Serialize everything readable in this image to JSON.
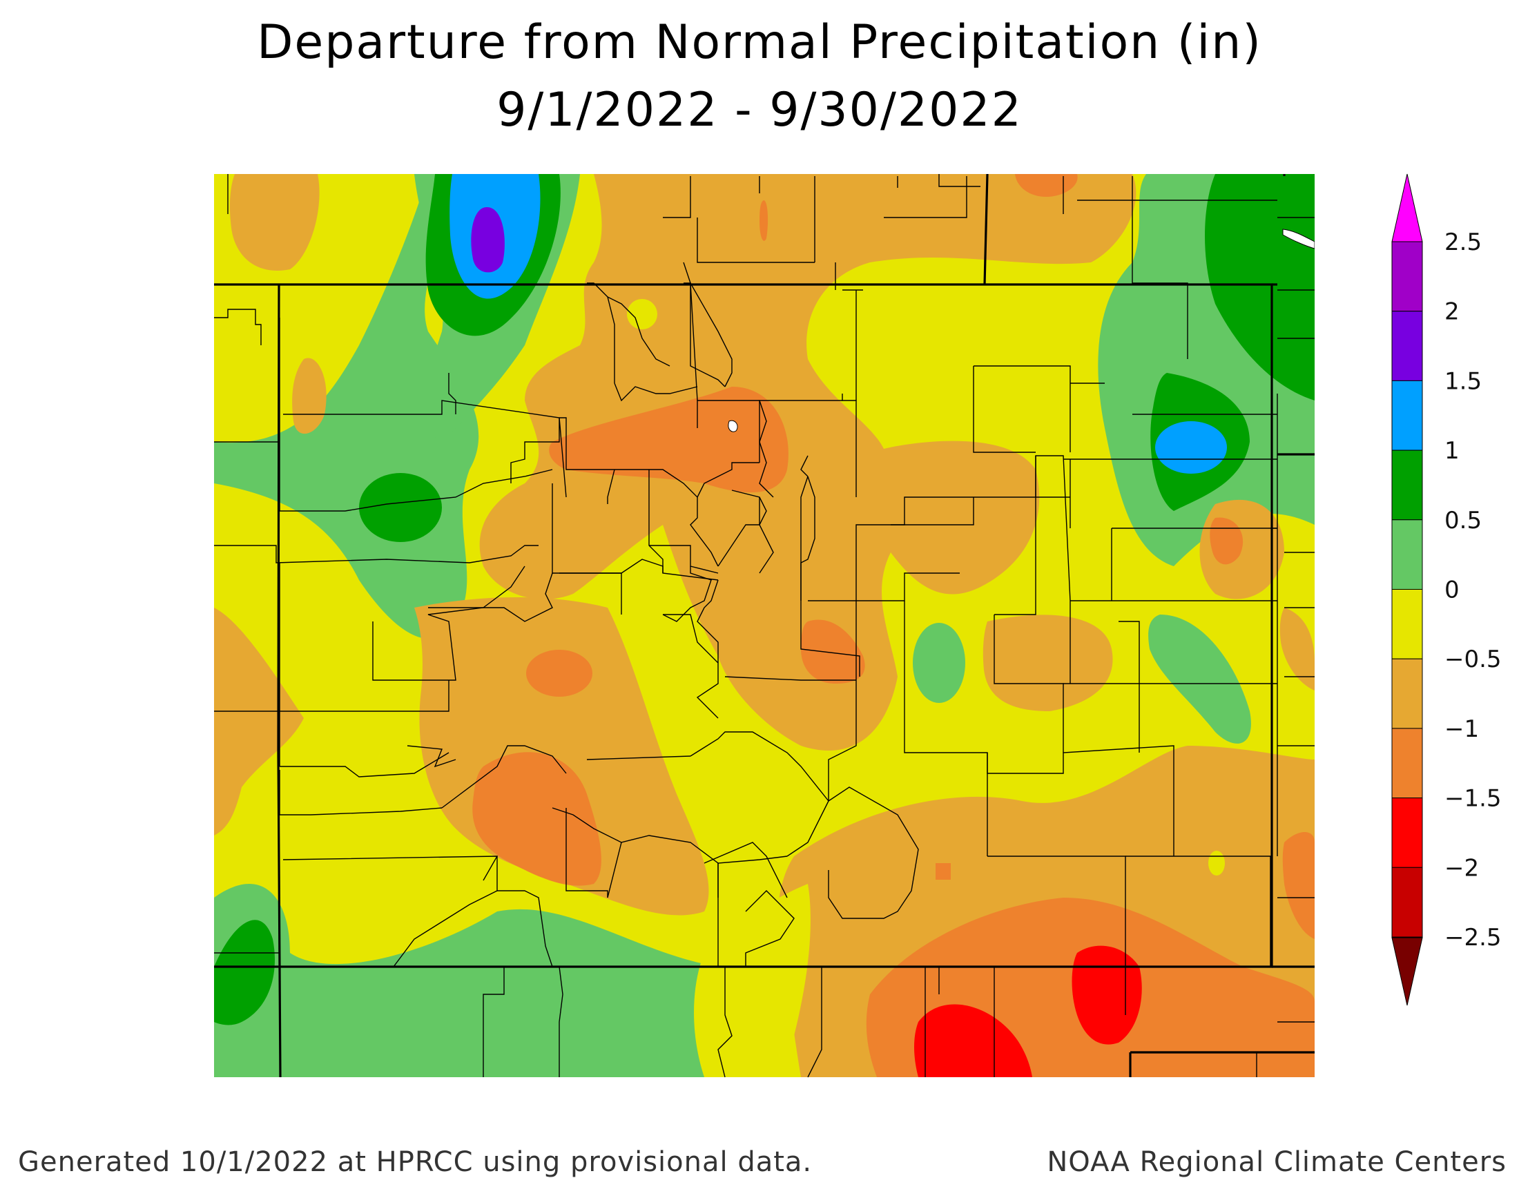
{
  "title": {
    "line1": "Departure from Normal Precipitation (in)",
    "line2": "9/1/2022 - 9/30/2022"
  },
  "footer": {
    "left": "Generated 10/1/2022 at HPRCC using provisional data.",
    "right": "NOAA Regional Climate Centers"
  },
  "legend": {
    "bins": [
      {
        "label": "2.5",
        "color": "#ff00ff"
      },
      {
        "label": "2",
        "color": "#a000c8"
      },
      {
        "label": "1.5",
        "color": "#7800e0"
      },
      {
        "label": "1",
        "color": "#00a0ff"
      },
      {
        "label": "0.5",
        "color": "#00a000"
      },
      {
        "label": "0",
        "color": "#64c864"
      },
      {
        "label": "−0.5",
        "color": "#e6e600"
      },
      {
        "label": "−1",
        "color": "#e6a832"
      },
      {
        "label": "−1.5",
        "color": "#ee822d"
      },
      {
        "label": "−2",
        "color": "#ff0000"
      },
      {
        "label": "−2.5",
        "color": "#c80000"
      },
      {
        "label": "",
        "color": "#780000"
      }
    ]
  }
}
